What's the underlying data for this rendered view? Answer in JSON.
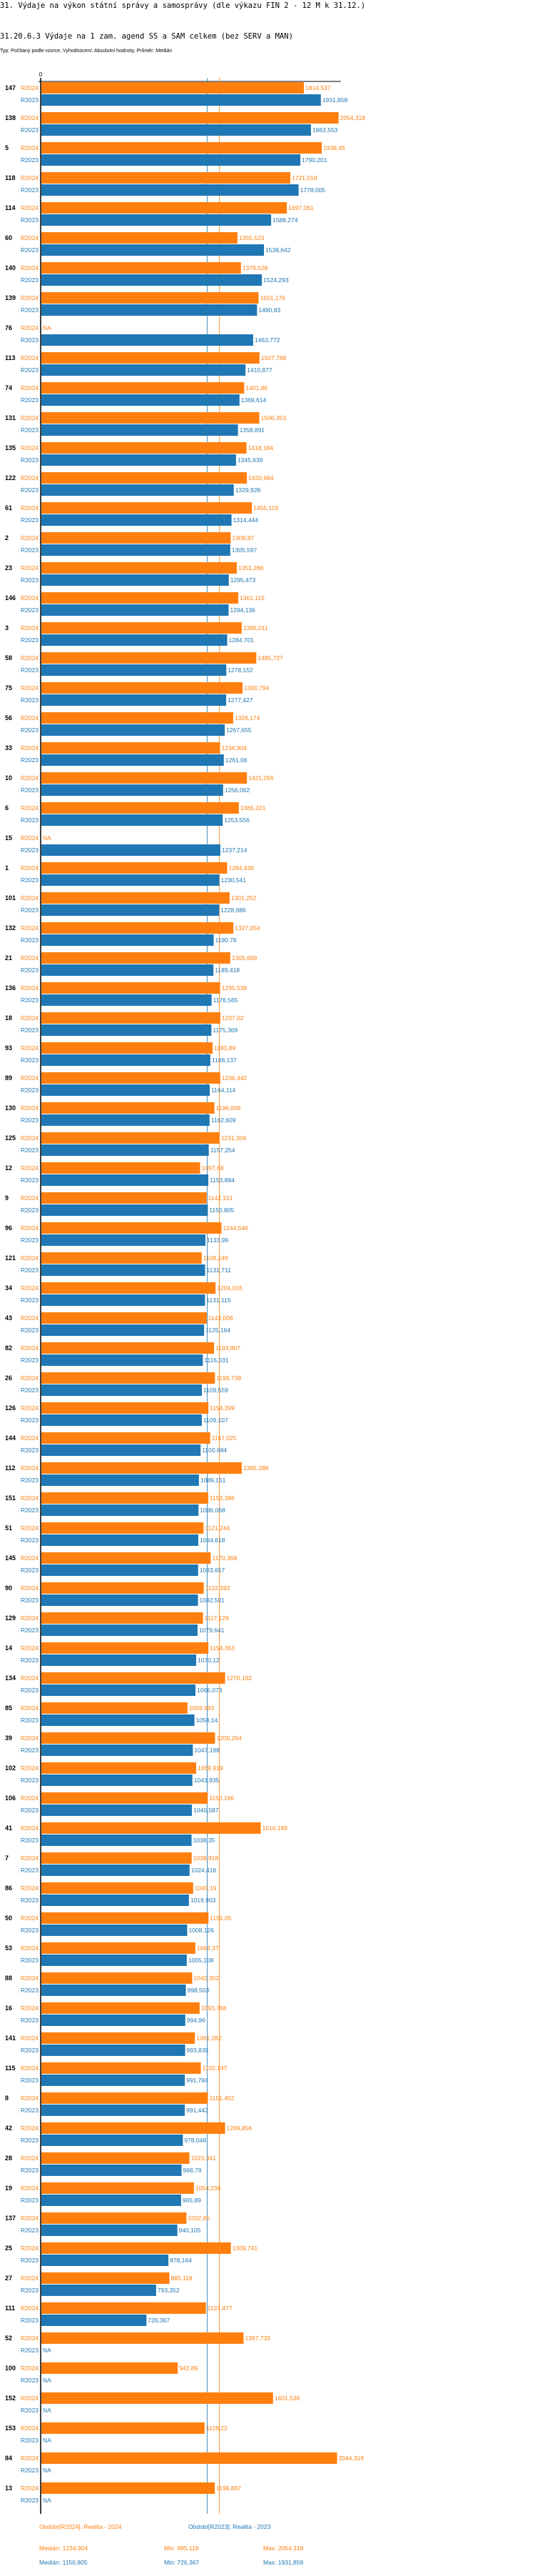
{
  "header": {
    "title": "31. Výdaje na výkon státní správy a samosprávy (dle výkazu FIN 2 - 12 M k 31.12.)",
    "subtitle": "31.20.6.3 Výdaje na 1 zam. agend SS a SAM celkem (bez SERV a MAN)",
    "typ": "Typ: Počítaný podle vzorce, Vyhodnocení: Absolutní hodnoty, Průměr: Medián"
  },
  "chart_data": {
    "type": "bar",
    "orientation": "horizontal",
    "axis_zero_label": "0",
    "xlim": [
      0,
      2075
    ],
    "grid": false,
    "na_label": "NA",
    "colors": {
      "R2024": "#ff7f0e",
      "R2023": "#1f77b4"
    },
    "categories": [
      "147",
      "138",
      "5",
      "118",
      "114",
      "60",
      "140",
      "139",
      "76",
      "113",
      "74",
      "131",
      "135",
      "122",
      "61",
      "2",
      "23",
      "146",
      "3",
      "58",
      "75",
      "56",
      "33",
      "10",
      "6",
      "15",
      "1",
      "101",
      "132",
      "21",
      "136",
      "18",
      "93",
      "89",
      "130",
      "125",
      "12",
      "9",
      "96",
      "121",
      "34",
      "43",
      "82",
      "26",
      "126",
      "144",
      "112",
      "151",
      "51",
      "145",
      "90",
      "129",
      "14",
      "134",
      "85",
      "39",
      "102",
      "106",
      "41",
      "7",
      "86",
      "50",
      "53",
      "88",
      "16",
      "141",
      "115",
      "8",
      "42",
      "28",
      "19",
      "137",
      "25",
      "27",
      "111",
      "52",
      "100",
      "152",
      "153",
      "84",
      "13"
    ],
    "series": [
      {
        "name": "R2024",
        "values": [
          1814.537,
          2054.318,
          1938.45,
          1721.018,
          1697.061,
          1355.523,
          1379.528,
          1501.176,
          null,
          1507.788,
          1401.86,
          1506.353,
          1418.184,
          1420.684,
          1455.119,
          1308.87,
          1351.286,
          1361.115,
          1385.011,
          1485.727,
          1390.794,
          1326.174,
          1234.904,
          1421.056,
          1365.321,
          null,
          1284.436,
          1301.252,
          1327.054,
          1305.689,
          1235.538,
          1237.02,
          1183.89,
          1236.442,
          1196.008,
          1231.304,
          1097.68,
          1142.151,
          1244.546,
          1108.149,
          1204.016,
          1143.008,
          1193.807,
          1199.738,
          1154.399,
          1167.025,
          1385.288,
          1153.386,
          1121.244,
          1170.368,
          1122.392,
          1117.129,
          1154.363,
          1270.182,
          1009.993,
          1200.264,
          1069.919,
          1150.166,
          1516.189,
          1038.918,
          1049.19,
          1155.05,
          1064.37,
          1042.302,
          1093.768,
          1061.282,
          1102.197,
          1151.452,
          1269.856,
          1023.341,
          1054.236,
          1002.85,
          1309.741,
          885.118,
          1137.477,
          1397.733,
          942.89,
          1601.538,
          1128.22,
          2044.319,
          1198.887
        ]
      },
      {
        "name": "R2023",
        "values": [
          1931.858,
          1863.553,
          1790.201,
          1778.005,
          1588.274,
          1538.642,
          1524.293,
          1490.83,
          1463.772,
          1410.877,
          1369.614,
          1358.891,
          1345.639,
          1329.928,
          1314.444,
          1305.597,
          1295.473,
          1294.136,
          1284.701,
          1278.152,
          1277.427,
          1267.655,
          1261.06,
          1256.062,
          1253.556,
          1237.214,
          1230.541,
          1228.986,
          1190.78,
          1189.418,
          1176.565,
          1175.369,
          1168.137,
          1164.114,
          1162.609,
          1157.254,
          1153.884,
          1150.805,
          1133.99,
          1131.711,
          1131.115,
          1125.164,
          1116.031,
          1109.559,
          1109.107,
          1100.684,
          1089.151,
          1086.068,
          1084.618,
          1083.657,
          1082.501,
          1079.641,
          1070.12,
          1065.073,
          1058.14,
          1047.198,
          1043.935,
          1040.587,
          1038.35,
          1024.416,
          1019.903,
          1008.126,
          1005.108,
          998.503,
          994.96,
          993.835,
          991.784,
          991.442,
          978.048,
          968.79,
          965.89,
          940.105,
          878.164,
          793.352,
          726.367,
          null,
          null,
          null,
          null,
          null,
          null
        ]
      }
    ],
    "medians": {
      "R2024": 1234.904,
      "R2023": 1150.805
    },
    "legend": {
      "r2024": {
        "label": "Období[R2024]: Realita - 2024",
        "median": "Medián: 1234,904",
        "min": "Min: 885,118",
        "max": "Max: 2054,318"
      },
      "r2023": {
        "label": "Období[R2023]: Realita - 2023",
        "median": "Medián: 1150,805",
        "min": "Min: 726,367",
        "max": "Max: 1931,858"
      }
    }
  }
}
